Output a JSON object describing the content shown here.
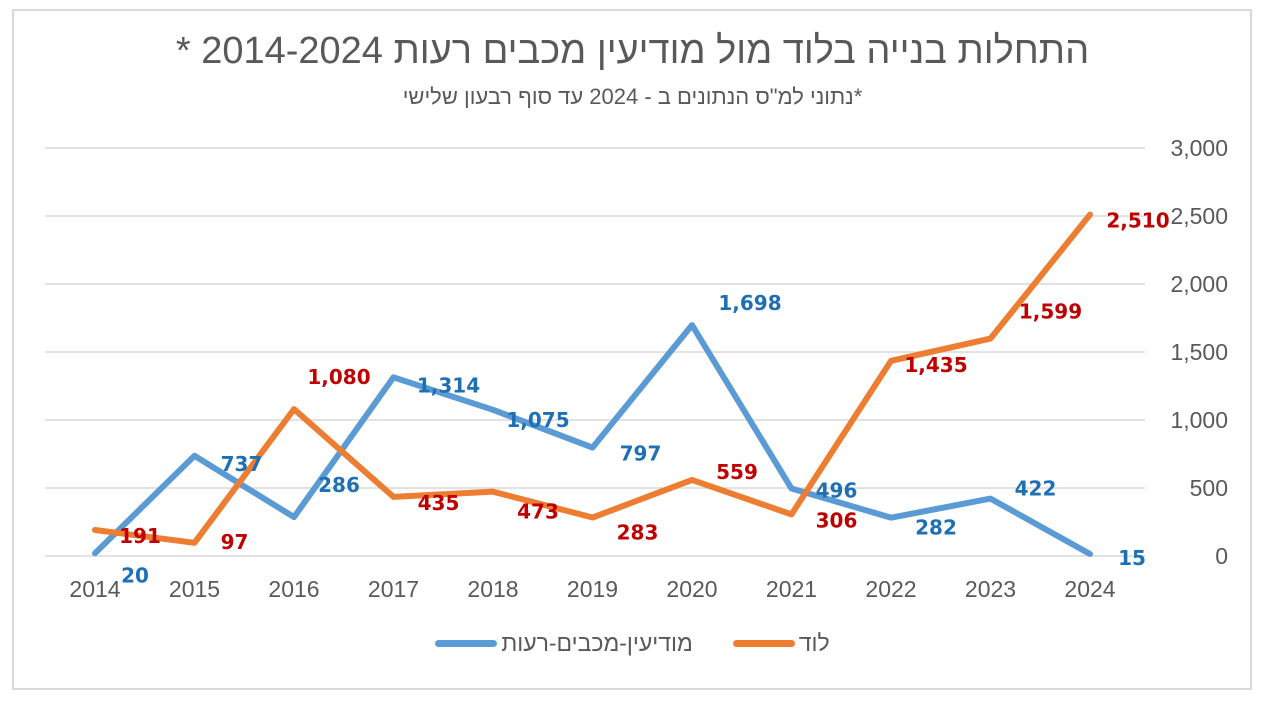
{
  "chart_data": {
    "type": "line",
    "title": "התחלות בנייה בלוד מול מודיעין מכבים רעות  2014-2024 *",
    "subtitle": "*נתוני למ\"ס הנתונים ב - 2024 עד סוף רבעון שלישי",
    "xlabel": "",
    "ylabel": "",
    "x": [
      "2014",
      "2015",
      "2016",
      "2017",
      "2018",
      "2019",
      "2020",
      "2021",
      "2022",
      "2023",
      "2024"
    ],
    "ylim": [
      0,
      3000
    ],
    "yticks": [
      0,
      500,
      1000,
      1500,
      2000,
      2500,
      3000
    ],
    "ytick_labels": [
      "0",
      "500",
      "1,000",
      "1,500",
      "2,000",
      "2,500",
      "3,000"
    ],
    "y_axis_side": "right",
    "grid": true,
    "legend_position": "bottom",
    "series": [
      {
        "name": "מודיעין-מכבים-רעות",
        "color": "#5b9bd5",
        "label_color": "#1f6fb5",
        "values": [
          20,
          737,
          286,
          1314,
          1075,
          797,
          1698,
          496,
          282,
          422,
          15
        ],
        "value_labels": [
          "20",
          "737",
          "286",
          "1,314",
          "1,075",
          "797",
          "1,698",
          "496",
          "282",
          "422",
          "15"
        ]
      },
      {
        "name": "לוד",
        "color": "#ed7d31",
        "label_color": "#c00000",
        "values": [
          191,
          97,
          1080,
          435,
          473,
          283,
          559,
          306,
          1435,
          1599,
          2510
        ],
        "value_labels": [
          "191",
          "97",
          "1,080",
          "435",
          "473",
          "283",
          "559",
          "306",
          "1,435",
          "1,599",
          "2,510"
        ]
      }
    ]
  }
}
